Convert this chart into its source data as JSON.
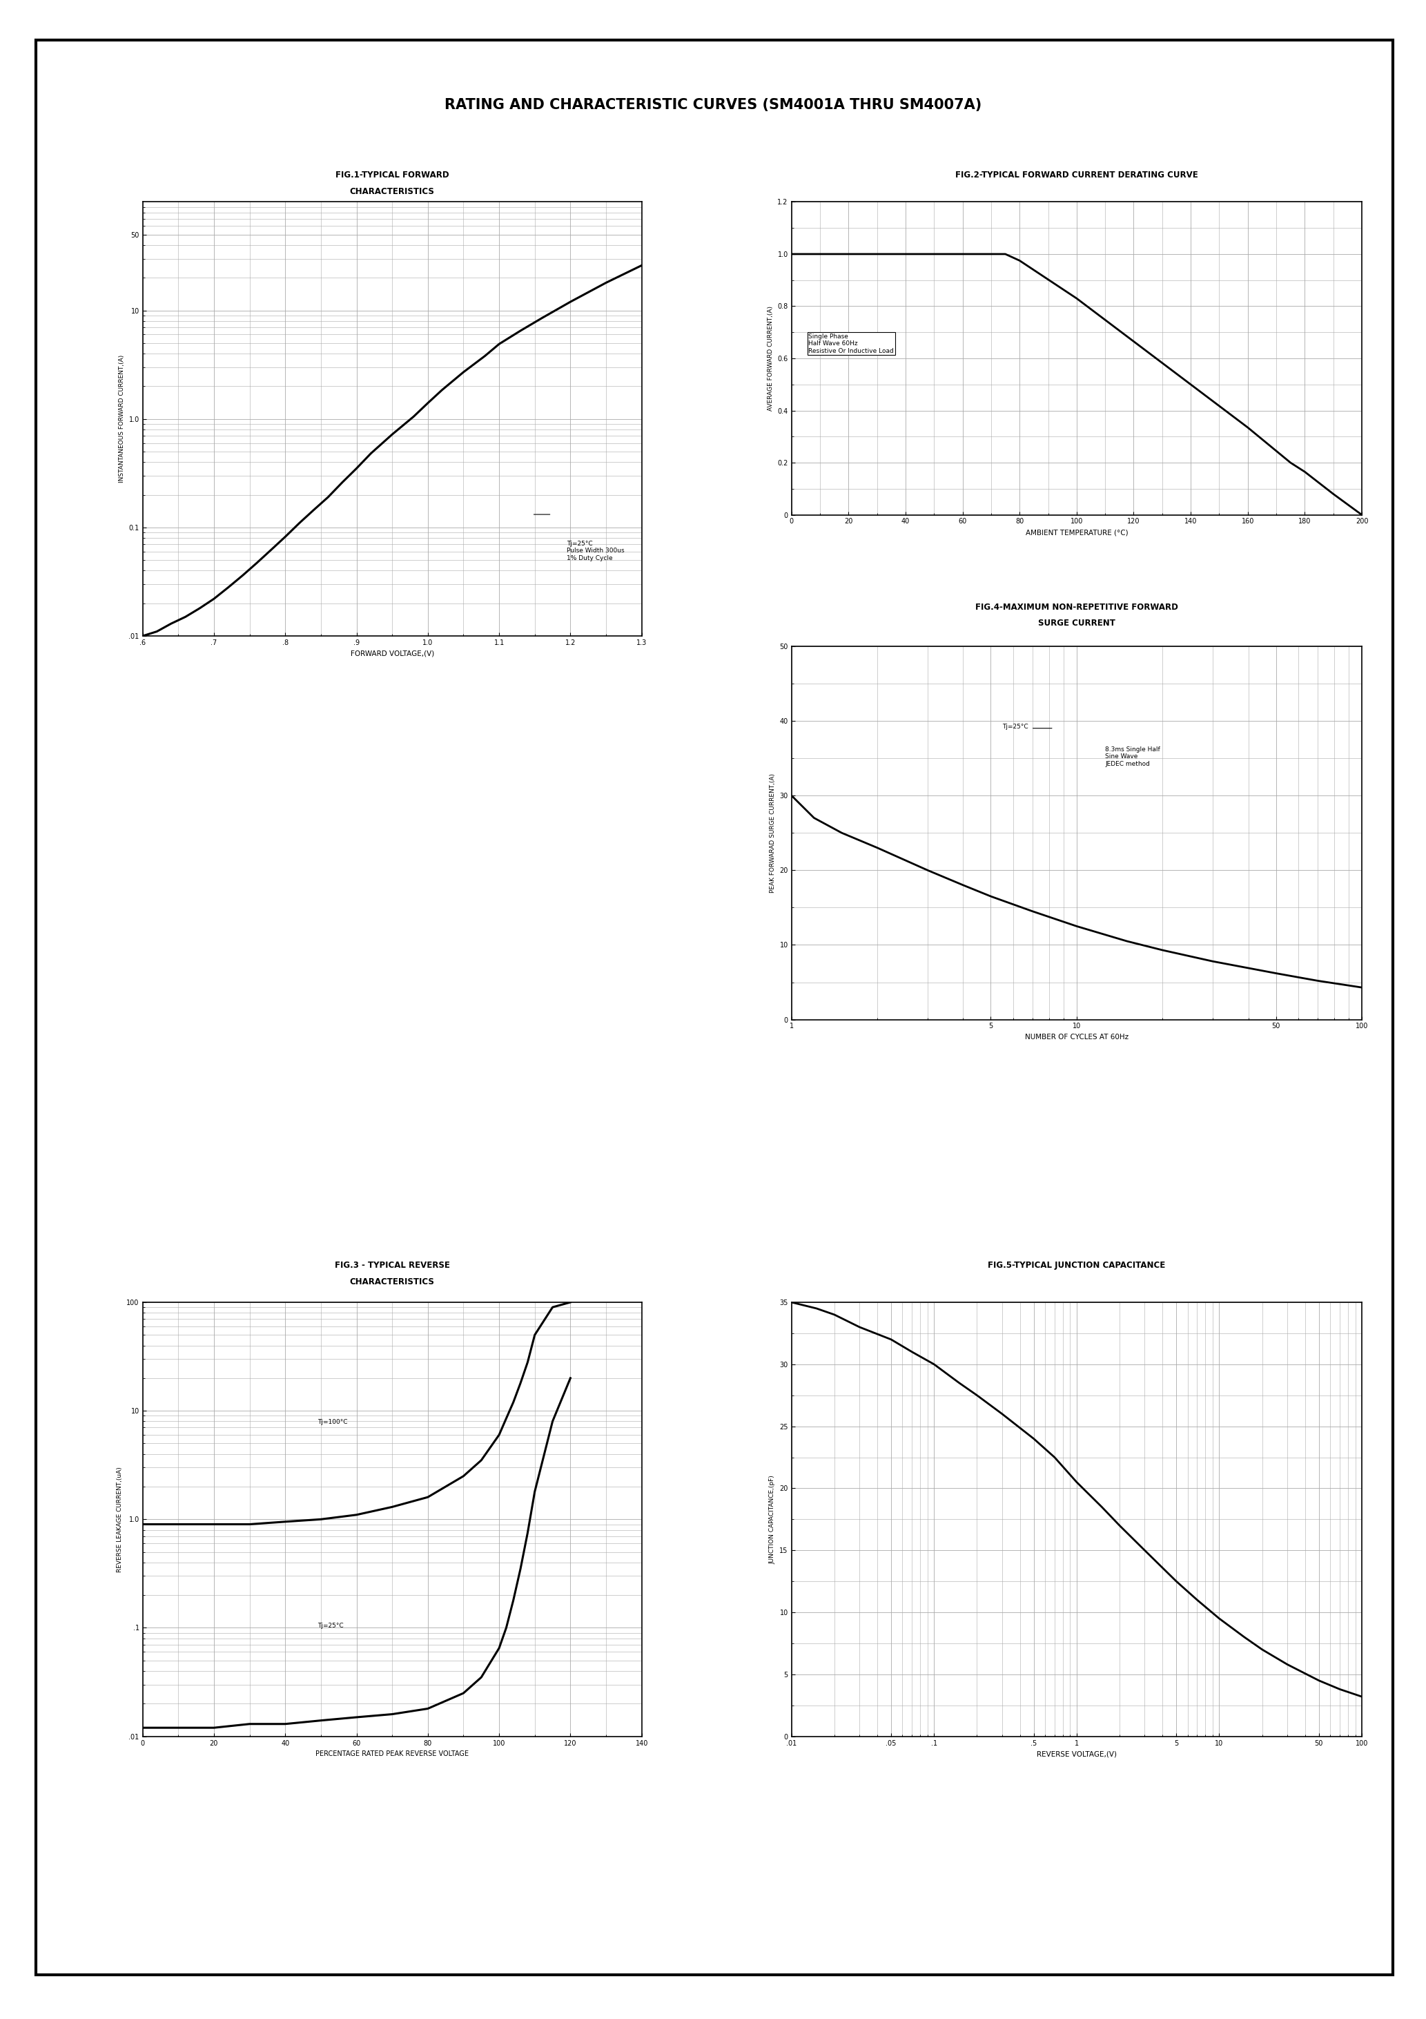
{
  "title": "RATING AND CHARACTERISTIC CURVES (SM4001A THRU SM4007A)",
  "fig1_title_line1": "FIG.1-TYPICAL FORWARD",
  "fig1_title_line2": "CHARACTERISTICS",
  "fig1_xlabel": "FORWARD VOLTAGE,(V)",
  "fig1_ylabel": "INSTANTANEOUS FORWARD CURRENT,(A)",
  "fig1_annotation": "Tj=25°C\nPulse Width 300us\n1% Duty Cycle",
  "fig1_yticks": [
    0.01,
    0.1,
    1.0,
    10,
    50
  ],
  "fig1_ytick_labels": [
    ".01",
    "0.1",
    "1.0",
    "10",
    "50"
  ],
  "fig1_xticks": [
    0.6,
    0.7,
    0.8,
    0.9,
    1.0,
    1.1,
    1.2,
    1.3
  ],
  "fig1_xtick_labels": [
    ".6",
    ".7",
    ".8",
    ".9",
    "1.0",
    "1.1",
    "1.2",
    "1.3"
  ],
  "fig2_title": "FIG.2-TYPICAL FORWARD CURRENT DERATING CURVE",
  "fig2_xlabel": "AMBIENT TEMPERATURE (°C)",
  "fig2_ylabel": "AVERAGE FORWARD CURRENT,(A)",
  "fig2_annotation": "Single Phase\nHalf Wave 60Hz\nResistive Or Inductive Load",
  "fig2_xticks": [
    0,
    20,
    40,
    60,
    80,
    100,
    120,
    140,
    160,
    180,
    200
  ],
  "fig2_yticks": [
    0,
    0.2,
    0.4,
    0.6,
    0.8,
    1.0,
    1.2
  ],
  "fig2_ytick_labels": [
    "0",
    "0.2",
    "0.4",
    "0.6",
    "0.8",
    "1.0",
    "1.2"
  ],
  "fig3_title_line1": "FIG.3 - TYPICAL REVERSE",
  "fig3_title_line2": "CHARACTERISTICS",
  "fig3_xlabel": "PERCENTAGE RATED PEAK REVERSE VOLTAGE",
  "fig3_ylabel": "REVERSE LEAKAGE CURRENT,(uA)",
  "fig3_annotation_hi": "Tj=100°C",
  "fig3_annotation_lo": "Tj=25°C",
  "fig3_yticks": [
    0.01,
    0.1,
    1.0,
    10,
    100
  ],
  "fig3_ytick_labels": [
    ".01",
    ".1",
    "1.0",
    "10",
    "100"
  ],
  "fig3_xticks": [
    0,
    20,
    40,
    60,
    80,
    100,
    120,
    140
  ],
  "fig4_title_line1": "FIG.4-MAXIMUM NON-REPETITIVE FORWARD",
  "fig4_title_line2": "SURGE CURRENT",
  "fig4_xlabel": "NUMBER OF CYCLES AT 60Hz",
  "fig4_ylabel": "PEAK FORWARAD SURGE CURRENT,(A)",
  "fig4_annotation": "Tj=25°C",
  "fig4_annotation2": "8.3ms Single Half\nSine Wave\nJEDEC method",
  "fig4_yticks": [
    0,
    10,
    20,
    30,
    40,
    50
  ],
  "fig4_xticks": [
    1,
    5,
    10,
    50,
    100
  ],
  "fig5_title": "FIG.5-TYPICAL JUNCTION CAPACITANCE",
  "fig5_xlabel": "REVERSE VOLTAGE,(V)",
  "fig5_ylabel": "JUNCTION CAPACITANCE,(pF)",
  "fig5_yticks": [
    0,
    5,
    10,
    15,
    20,
    25,
    30,
    35
  ],
  "fig5_ytick_labels": [
    "0",
    "5",
    "10",
    "15",
    "20",
    "25",
    "30",
    "35"
  ],
  "fig5_xticks": [
    0.01,
    0.05,
    0.1,
    0.5,
    1,
    5,
    10,
    50,
    100
  ],
  "fig5_xtick_labels": [
    ".01",
    ".05",
    ".1",
    ".5",
    "1",
    "5",
    "10",
    "50",
    "100"
  ],
  "background_color": "#ffffff",
  "line_color": "#000000",
  "grid_color": "#aaaaaa"
}
